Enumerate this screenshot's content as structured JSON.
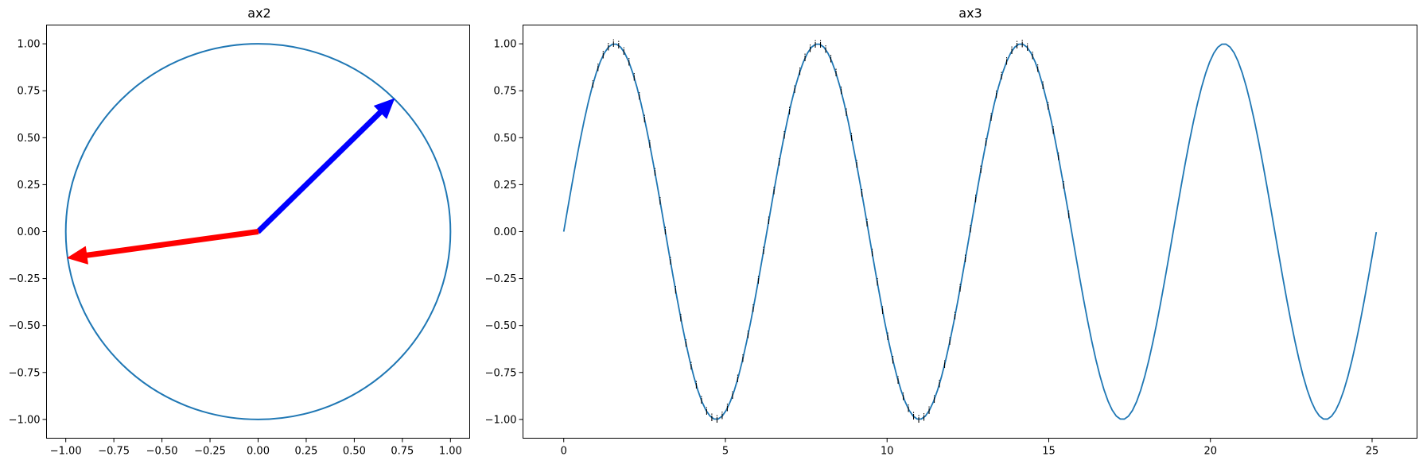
{
  "figure": {
    "background": "#ffffff"
  },
  "chart_data": [
    {
      "type": "line",
      "title": "ax2",
      "xlabel": "",
      "ylabel": "",
      "xlim": [
        -1.1,
        1.1
      ],
      "ylim": [
        -1.1,
        1.1
      ],
      "xticks": [
        -1.0,
        -0.75,
        -0.5,
        -0.25,
        0.0,
        0.25,
        0.5,
        0.75,
        1.0
      ],
      "xtick_labels": [
        "−1.00",
        "−0.75",
        "−0.50",
        "−0.25",
        "0.00",
        "0.25",
        "0.50",
        "0.75",
        "1.00"
      ],
      "yticks": [
        -1.0,
        -0.75,
        -0.5,
        -0.25,
        0.0,
        0.25,
        0.5,
        0.75,
        1.0
      ],
      "ytick_labels": [
        "−1.00",
        "−0.75",
        "−0.50",
        "−0.25",
        "0.00",
        "0.25",
        "0.50",
        "0.75",
        "1.00"
      ],
      "grid": false,
      "series": [
        {
          "kind": "unit-circle",
          "color": "#1f77b4",
          "center": [
            0,
            0
          ],
          "radius": 1.0
        }
      ],
      "arrows": [
        {
          "color": "#0000ff",
          "from": [
            0,
            0
          ],
          "to": [
            0.707,
            0.707
          ]
        },
        {
          "color": "#ff0000",
          "from": [
            0,
            0
          ],
          "to": [
            -0.99,
            -0.14
          ]
        }
      ]
    },
    {
      "type": "line",
      "title": "ax3",
      "xlabel": "",
      "ylabel": "",
      "xlim": [
        -1.26,
        26.39
      ],
      "ylim": [
        -1.1,
        1.1
      ],
      "xticks": [
        0,
        5,
        10,
        15,
        20,
        25
      ],
      "xtick_labels": [
        "0",
        "5",
        "10",
        "15",
        "20",
        "25"
      ],
      "yticks": [
        -1.0,
        -0.75,
        -0.5,
        -0.25,
        0.0,
        0.25,
        0.5,
        0.75,
        1.0
      ],
      "ytick_labels": [
        "−1.00",
        "−0.75",
        "−0.50",
        "−0.25",
        "0.00",
        "0.25",
        "0.50",
        "0.75",
        "1.00"
      ],
      "grid": false,
      "series": [
        {
          "kind": "function",
          "function": "sin",
          "x_range": [
            0,
            25.13
          ],
          "samples": 201,
          "color": "#1f77b4"
        }
      ],
      "point_labels": {
        "text": "i",
        "color": "#000000",
        "x_range": [
          0.9,
          15.7
        ],
        "step": 0.16
      }
    }
  ]
}
